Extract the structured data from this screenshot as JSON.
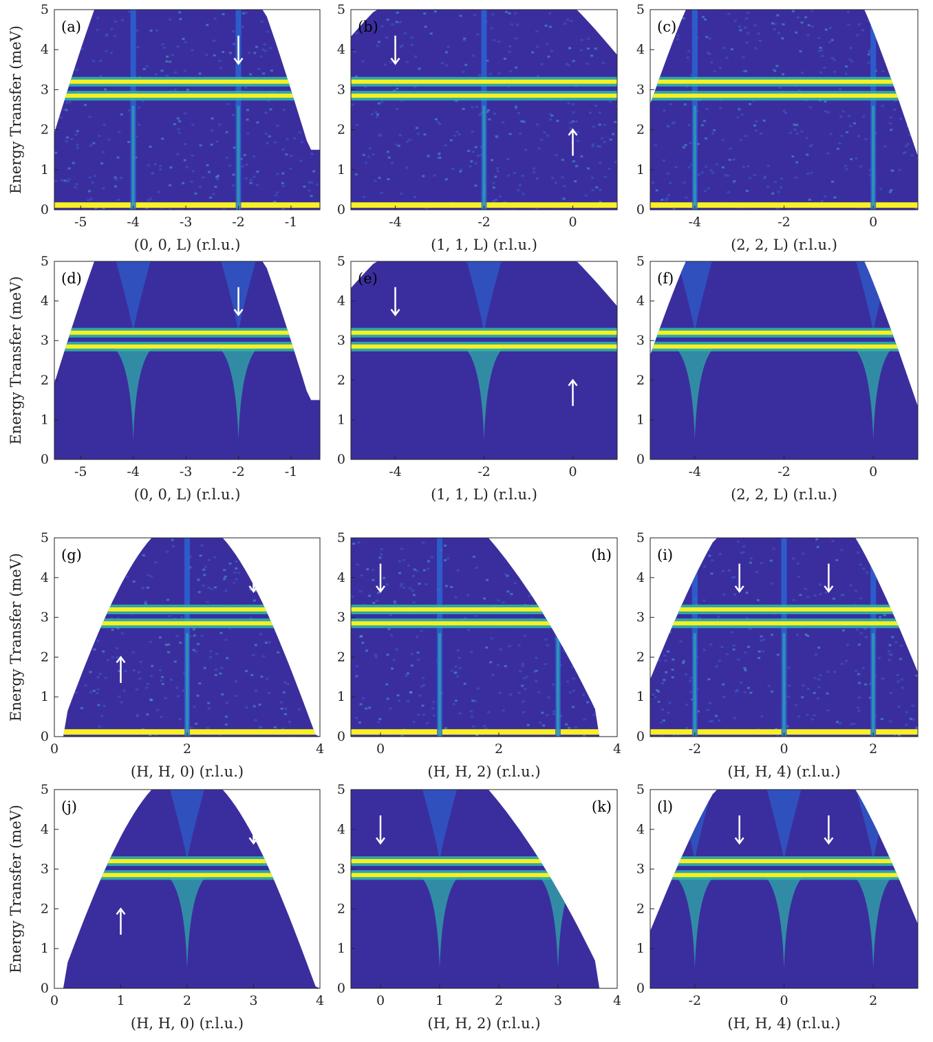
{
  "figure": {
    "ylabel": "Energy Transfer (meV)",
    "colors": {
      "background": "#3a2e9e",
      "high": "#f9f021",
      "mid": "#2fb4a8",
      "low": "#2a67d4",
      "arrow": "#ffffff",
      "axis": "#222222"
    }
  },
  "chart_data": [
    {
      "id": "a",
      "panel_label": "(a)",
      "kind": "data",
      "type": "heatmap",
      "xlabel": "(0, 0, L) (r.l.u.)",
      "xlim": [
        -5.5,
        -0.45
      ],
      "ylim": [
        0,
        5
      ],
      "xticks": [
        -5,
        -4,
        -3,
        -2,
        -1
      ],
      "xtick_labels": [
        "-5",
        "-4",
        "-3",
        "-2",
        "-1"
      ],
      "yticks": [
        0,
        1,
        2,
        3,
        4,
        5
      ],
      "ytick_labels": [
        "0",
        "1",
        "2",
        "3",
        "4",
        "5"
      ],
      "flat_bands_meV": [
        2.85,
        3.2
      ],
      "elastic_line_meV": 0.1,
      "dispersions": [
        -4,
        -2
      ],
      "arrows": [
        {
          "x": -2,
          "dir": "down"
        }
      ]
    },
    {
      "id": "b",
      "panel_label": "(b)",
      "kind": "data",
      "type": "heatmap",
      "xlabel": "(1, 1, L) (r.l.u.)",
      "xlim": [
        -5,
        1
      ],
      "ylim": [
        0,
        5
      ],
      "xticks": [
        -4,
        -2,
        0
      ],
      "xtick_labels": [
        "-4",
        "-2",
        "0"
      ],
      "yticks": [
        0,
        1,
        2,
        3,
        4,
        5
      ],
      "ytick_labels": [
        "0",
        "1",
        "2",
        "3",
        "4",
        "5"
      ],
      "flat_bands_meV": [
        2.85,
        3.2
      ],
      "elastic_line_meV": 0.1,
      "dispersions": [
        -2
      ],
      "arrows": [
        {
          "x": -4,
          "dir": "down"
        },
        {
          "x": 0,
          "dir": "up"
        }
      ]
    },
    {
      "id": "c",
      "panel_label": "(c)",
      "kind": "data",
      "type": "heatmap",
      "xlabel": "(2, 2, L) (r.l.u.)",
      "xlim": [
        -5,
        1
      ],
      "ylim": [
        0,
        5
      ],
      "xticks": [
        -4,
        -2,
        0
      ],
      "xtick_labels": [
        "-4",
        "-2",
        "0"
      ],
      "yticks": [
        0,
        1,
        2,
        3,
        4,
        5
      ],
      "ytick_labels": [
        "0",
        "1",
        "2",
        "3",
        "4",
        "5"
      ],
      "flat_bands_meV": [
        2.85,
        3.2
      ],
      "elastic_line_meV": 0.1,
      "dispersions": [
        -4,
        0
      ],
      "arrows": []
    },
    {
      "id": "d",
      "panel_label": "(d)",
      "kind": "sim",
      "type": "heatmap",
      "xlabel": "(0, 0, L) (r.l.u.)",
      "xlim": [
        -5.5,
        -0.45
      ],
      "ylim": [
        0,
        5
      ],
      "xticks": [
        -5,
        -4,
        -3,
        -2,
        -1
      ],
      "xtick_labels": [
        "-5",
        "-4",
        "-3",
        "-2",
        "-1"
      ],
      "yticks": [
        0,
        1,
        2,
        3,
        4,
        5
      ],
      "ytick_labels": [
        "0",
        "1",
        "2",
        "3",
        "4",
        "5"
      ],
      "flat_bands_meV": [
        2.85,
        3.2
      ],
      "dispersions": [
        -4,
        -2
      ],
      "arrows": [
        {
          "x": -2,
          "dir": "down"
        }
      ]
    },
    {
      "id": "e",
      "panel_label": "(e)",
      "kind": "sim",
      "type": "heatmap",
      "xlabel": "(1, 1, L) (r.l.u.)",
      "xlim": [
        -5,
        1
      ],
      "ylim": [
        0,
        5
      ],
      "xticks": [
        -4,
        -2,
        0
      ],
      "xtick_labels": [
        "-4",
        "-2",
        "0"
      ],
      "yticks": [
        0,
        1,
        2,
        3,
        4,
        5
      ],
      "ytick_labels": [
        "0",
        "1",
        "2",
        "3",
        "4",
        "5"
      ],
      "flat_bands_meV": [
        2.85,
        3.2
      ],
      "dispersions": [
        -2
      ],
      "arrows": [
        {
          "x": -4,
          "dir": "down"
        },
        {
          "x": 0,
          "dir": "up"
        }
      ]
    },
    {
      "id": "f",
      "panel_label": "(f)",
      "kind": "sim",
      "type": "heatmap",
      "xlabel": "(2, 2, L) (r.l.u.)",
      "xlim": [
        -5,
        1
      ],
      "ylim": [
        0,
        5
      ],
      "xticks": [
        -4,
        -2,
        0
      ],
      "xtick_labels": [
        "-4",
        "-2",
        "0"
      ],
      "yticks": [
        0,
        1,
        2,
        3,
        4,
        5
      ],
      "ytick_labels": [
        "0",
        "1",
        "2",
        "3",
        "4",
        "5"
      ],
      "flat_bands_meV": [
        2.85,
        3.2
      ],
      "dispersions": [
        -4,
        0
      ],
      "arrows": []
    },
    {
      "id": "g",
      "panel_label": "(g)",
      "kind": "data",
      "type": "heatmap",
      "xlabel": "(H, H, 0) (r.l.u.)",
      "xlim": [
        0,
        4
      ],
      "ylim": [
        0,
        5
      ],
      "xticks": [
        0,
        2,
        4
      ],
      "xtick_labels": [
        "0",
        "2",
        "4"
      ],
      "yticks": [
        0,
        1,
        2,
        3,
        4,
        5
      ],
      "ytick_labels": [
        "0",
        "1",
        "2",
        "3",
        "4",
        "5"
      ],
      "flat_bands_meV": [
        2.85,
        3.2
      ],
      "elastic_line_meV": 0.1,
      "dispersions": [
        2
      ],
      "arrows": [
        {
          "x": 1,
          "dir": "up"
        },
        {
          "x": 3,
          "dir": "down"
        }
      ]
    },
    {
      "id": "h",
      "panel_label": "(h)",
      "kind": "data",
      "type": "heatmap",
      "xlabel": "(H, H, 2) (r.l.u.)",
      "xlim": [
        -0.5,
        4
      ],
      "ylim": [
        0,
        5
      ],
      "xticks": [
        0,
        2,
        4
      ],
      "xtick_labels": [
        "0",
        "2",
        "4"
      ],
      "yticks": [
        0,
        1,
        2,
        3,
        4,
        5
      ],
      "ytick_labels": [
        "0",
        "1",
        "2",
        "3",
        "4",
        "5"
      ],
      "flat_bands_meV": [
        2.85,
        3.2
      ],
      "elastic_line_meV": 0.1,
      "dispersions": [
        1,
        3
      ],
      "arrows": [
        {
          "x": 0,
          "dir": "down"
        }
      ]
    },
    {
      "id": "i",
      "panel_label": "(i)",
      "kind": "data",
      "type": "heatmap",
      "xlabel": "(H, H, 4) (r.l.u.)",
      "xlim": [
        -3,
        3
      ],
      "ylim": [
        0,
        5
      ],
      "xticks": [
        -2,
        0,
        2
      ],
      "xtick_labels": [
        "-2",
        "0",
        "2"
      ],
      "yticks": [
        0,
        1,
        2,
        3,
        4,
        5
      ],
      "ytick_labels": [
        "0",
        "1",
        "2",
        "3",
        "4",
        "5"
      ],
      "flat_bands_meV": [
        2.85,
        3.2
      ],
      "elastic_line_meV": 0.1,
      "dispersions": [
        -2,
        0,
        2
      ],
      "arrows": [
        {
          "x": -1,
          "dir": "down"
        },
        {
          "x": 1,
          "dir": "down"
        }
      ]
    },
    {
      "id": "j",
      "panel_label": "(j)",
      "kind": "sim",
      "type": "heatmap",
      "xlabel": "(H, H, 0) (r.l.u.)",
      "xlim": [
        0,
        4
      ],
      "ylim": [
        0,
        5
      ],
      "xticks": [
        0,
        1,
        2,
        3,
        4
      ],
      "xtick_labels": [
        "0",
        "1",
        "2",
        "3",
        "4"
      ],
      "yticks": [
        0,
        1,
        2,
        3,
        4,
        5
      ],
      "ytick_labels": [
        "0",
        "1",
        "2",
        "3",
        "4",
        "5"
      ],
      "flat_bands_meV": [
        2.85,
        3.2
      ],
      "dispersions": [
        2
      ],
      "arrows": [
        {
          "x": 1,
          "dir": "up"
        },
        {
          "x": 3,
          "dir": "down"
        }
      ]
    },
    {
      "id": "k",
      "panel_label": "(k)",
      "kind": "sim",
      "type": "heatmap",
      "xlabel": "(H, H, 2) (r.l.u.)",
      "xlim": [
        -0.5,
        4
      ],
      "ylim": [
        0,
        5
      ],
      "xticks": [
        0,
        1,
        2,
        3,
        4
      ],
      "xtick_labels": [
        "0",
        "1",
        "2",
        "3",
        "4"
      ],
      "yticks": [
        0,
        1,
        2,
        3,
        4,
        5
      ],
      "ytick_labels": [
        "0",
        "1",
        "2",
        "3",
        "4",
        "5"
      ],
      "flat_bands_meV": [
        2.85,
        3.2
      ],
      "dispersions": [
        1,
        3
      ],
      "arrows": [
        {
          "x": 0,
          "dir": "down"
        }
      ]
    },
    {
      "id": "l",
      "panel_label": "(l)",
      "kind": "sim",
      "type": "heatmap",
      "xlabel": "(H, H, 4) (r.l.u.)",
      "xlim": [
        -3,
        3
      ],
      "ylim": [
        0,
        5
      ],
      "xticks": [
        -2,
        0,
        2
      ],
      "xtick_labels": [
        "-2",
        "0",
        "2"
      ],
      "yticks": [
        0,
        1,
        2,
        3,
        4,
        5
      ],
      "ytick_labels": [
        "0",
        "1",
        "2",
        "3",
        "4",
        "5"
      ],
      "flat_bands_meV": [
        2.85,
        3.2
      ],
      "dispersions": [
        -2,
        0,
        2
      ],
      "arrows": [
        {
          "x": -1,
          "dir": "down"
        },
        {
          "x": 1,
          "dir": "down"
        }
      ]
    }
  ]
}
